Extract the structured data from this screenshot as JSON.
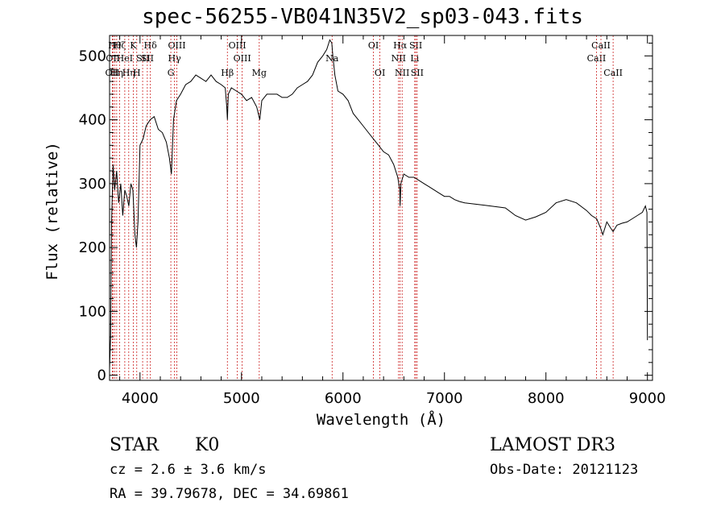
{
  "chart_data": {
    "type": "line",
    "title": "spec-56255-VB041N35V2_sp03-043.fits",
    "xlabel": "Wavelength (Å)",
    "ylabel": "Flux (relative)",
    "xlim": [
      3700,
      9050
    ],
    "ylim": [
      -8,
      532
    ],
    "xticks": [
      4000,
      5000,
      6000,
      7000,
      8000,
      9000
    ],
    "yticks": [
      0,
      100,
      200,
      300,
      400,
      500
    ],
    "series": [
      {
        "name": "flux",
        "x": [
          3700,
          3710,
          3720,
          3735,
          3750,
          3770,
          3790,
          3810,
          3830,
          3850,
          3870,
          3890,
          3910,
          3930,
          3950,
          3965,
          3980,
          4000,
          4030,
          4060,
          4100,
          4140,
          4180,
          4220,
          4260,
          4290,
          4310,
          4330,
          4360,
          4400,
          4450,
          4500,
          4550,
          4600,
          4650,
          4700,
          4750,
          4800,
          4840,
          4855,
          4861,
          4870,
          4900,
          4950,
          5000,
          5050,
          5100,
          5150,
          5180,
          5200,
          5250,
          5300,
          5350,
          5400,
          5450,
          5500,
          5550,
          5600,
          5650,
          5700,
          5750,
          5800,
          5840,
          5870,
          5890,
          5900,
          5920,
          5950,
          6000,
          6050,
          6100,
          6150,
          6200,
          6250,
          6300,
          6350,
          6400,
          6450,
          6500,
          6540,
          6560,
          6563,
          6570,
          6600,
          6650,
          6700,
          6750,
          6800,
          6850,
          6900,
          6950,
          7000,
          7050,
          7100,
          7150,
          7200,
          7300,
          7400,
          7500,
          7600,
          7700,
          7800,
          7900,
          8000,
          8100,
          8200,
          8300,
          8400,
          8450,
          8500,
          8540,
          8560,
          8600,
          8640,
          8662,
          8700,
          8750,
          8800,
          8850,
          8900,
          8950,
          8980,
          8995,
          9000
        ],
        "values": [
          10,
          60,
          240,
          330,
          290,
          320,
          270,
          300,
          250,
          290,
          280,
          265,
          300,
          290,
          220,
          200,
          240,
          360,
          370,
          390,
          400,
          405,
          385,
          380,
          365,
          340,
          315,
          400,
          430,
          440,
          455,
          460,
          470,
          465,
          460,
          470,
          460,
          455,
          450,
          420,
          400,
          440,
          450,
          445,
          440,
          430,
          435,
          420,
          400,
          430,
          440,
          440,
          440,
          435,
          435,
          440,
          450,
          455,
          460,
          470,
          490,
          500,
          510,
          525,
          520,
          500,
          470,
          445,
          440,
          430,
          410,
          400,
          390,
          380,
          370,
          360,
          350,
          345,
          330,
          310,
          290,
          265,
          300,
          315,
          310,
          310,
          305,
          300,
          295,
          290,
          285,
          280,
          280,
          275,
          272,
          270,
          268,
          266,
          264,
          262,
          250,
          243,
          248,
          255,
          270,
          275,
          270,
          258,
          250,
          245,
          230,
          220,
          240,
          230,
          225,
          235,
          238,
          240,
          245,
          250,
          255,
          265,
          255,
          55
        ]
      }
    ],
    "lines": [
      {
        "x": 3750,
        "label": "Hθ",
        "row": 1
      },
      {
        "x": 3734,
        "label": "OII",
        "row": 2
      },
      {
        "x": 3727,
        "label": "OII",
        "row": 3
      },
      {
        "x": 3770,
        "label": "Hη",
        "row": 3
      },
      {
        "x": 3800,
        "label": "Hζ",
        "row": 1
      },
      {
        "x": 3850,
        "label": "HeI",
        "row": 2
      },
      {
        "x": 3889,
        "label": "Hη",
        "row": 3
      },
      {
        "x": 3934,
        "label": "K",
        "row": 1
      },
      {
        "x": 3968,
        "label": "H",
        "row": 3
      },
      {
        "x": 4026,
        "label": "SII",
        "row": 2
      },
      {
        "x": 4102,
        "label": "Hδ",
        "row": 1
      },
      {
        "x": 4072,
        "label": "SII",
        "row": 2
      },
      {
        "x": 4340,
        "label": "Hγ",
        "row": 2
      },
      {
        "x": 4363,
        "label": "OIII",
        "row": 1
      },
      {
        "x": 4304,
        "label": "G",
        "row": 3
      },
      {
        "x": 4861,
        "label": "Hβ",
        "row": 3
      },
      {
        "x": 4959,
        "label": "OIII",
        "row": 1
      },
      {
        "x": 5007,
        "label": "OIII",
        "row": 2
      },
      {
        "x": 5175,
        "label": "Mg",
        "row": 3
      },
      {
        "x": 5893,
        "label": "Na",
        "row": 2
      },
      {
        "x": 6300,
        "label": "OI",
        "row": 1
      },
      {
        "x": 6364,
        "label": "OI",
        "row": 3
      },
      {
        "x": 6548,
        "label": "NII",
        "row": 2
      },
      {
        "x": 6563,
        "label": "Hα",
        "row": 1
      },
      {
        "x": 6583,
        "label": "NII",
        "row": 3
      },
      {
        "x": 6707,
        "label": "Li",
        "row": 2
      },
      {
        "x": 6717,
        "label": "SII",
        "row": 1
      },
      {
        "x": 6731,
        "label": "SII",
        "row": 3
      },
      {
        "x": 8498,
        "label": "CaII",
        "row": 2
      },
      {
        "x": 8542,
        "label": "CaII",
        "row": 1
      },
      {
        "x": 8662,
        "label": "CaII",
        "row": 3
      }
    ]
  },
  "footer": {
    "class_label": "STAR",
    "subclass": "K0",
    "survey": "LAMOST DR3",
    "redshift": "cz = 2.6 ± 3.6 km/s",
    "obs_date": "Obs-Date: 20121123",
    "coords": "RA =  39.79678, DEC =  34.69861"
  },
  "colors": {
    "line_marker": "#cc2222",
    "spectrum": "#000000"
  }
}
